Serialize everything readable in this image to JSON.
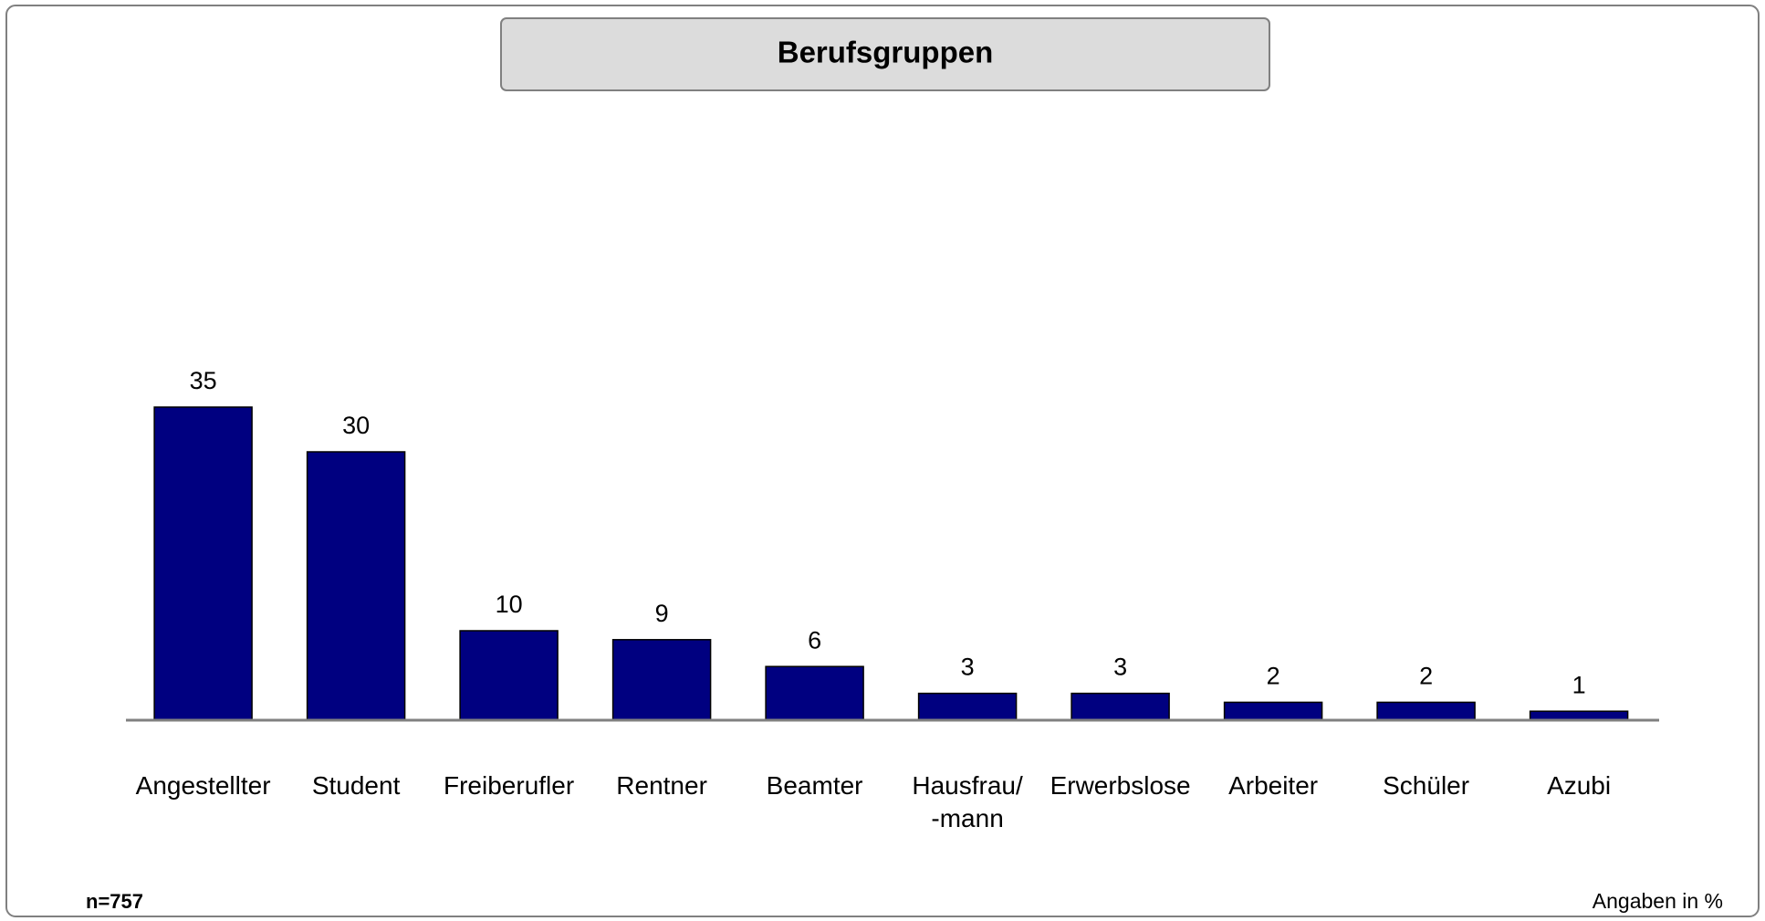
{
  "chart_data": {
    "type": "bar",
    "title": "Berufsgruppen",
    "categories": [
      "Angestellter",
      "Student",
      "Freiberufler",
      "Rentner",
      "Beamter",
      "Hausfrau/\n-mann",
      "Erwerbslose",
      "Arbeiter",
      "Schüler",
      "Azubi"
    ],
    "values": [
      35,
      30,
      10,
      9,
      6,
      3,
      3,
      2,
      2,
      1
    ],
    "color": "#000080",
    "footnote": "n=757",
    "unit_note": "Angaben in %"
  }
}
